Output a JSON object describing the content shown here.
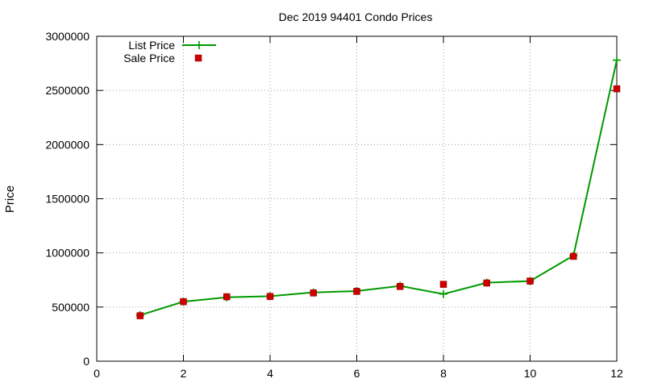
{
  "chart_data": {
    "type": "line",
    "title": "Dec 2019 94401 Condo Prices",
    "xlabel": "",
    "ylabel": "Price",
    "xlim": [
      0,
      12
    ],
    "ylim": [
      0,
      3000000
    ],
    "x_ticks": [
      0,
      2,
      4,
      6,
      8,
      10,
      12
    ],
    "y_ticks": [
      0,
      500000,
      1000000,
      1500000,
      2000000,
      2500000,
      3000000
    ],
    "grid": true,
    "legend_position": "top-left",
    "x": [
      1,
      2,
      3,
      4,
      5,
      6,
      7,
      8,
      9,
      10,
      11,
      12
    ],
    "series": [
      {
        "name": "List Price",
        "style": "line-plus",
        "color": "#009900",
        "values": [
          425000,
          550000,
          590000,
          600000,
          635000,
          648000,
          695000,
          620000,
          725000,
          740000,
          975000,
          2780000
        ]
      },
      {
        "name": "Sale Price",
        "style": "square-points",
        "color": "#cc0000",
        "values": [
          420000,
          550000,
          595000,
          598000,
          630000,
          645000,
          690000,
          710000,
          722000,
          740000,
          968000,
          2515000
        ]
      }
    ]
  }
}
